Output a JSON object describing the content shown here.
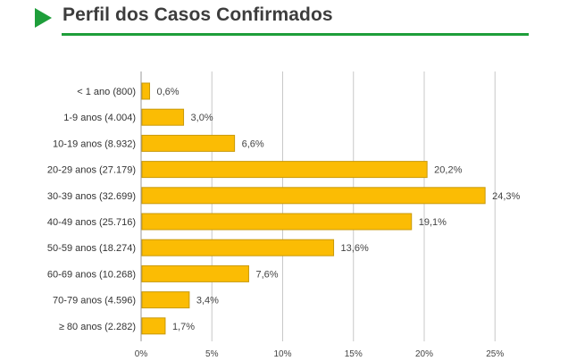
{
  "header": {
    "title": "Perfil dos Casos Confirmados",
    "accent_color": "#1e9e3a",
    "icon": "play-arrow-icon"
  },
  "chart_data": {
    "type": "bar",
    "orientation": "horizontal",
    "categories": [
      "< 1 ano (800)",
      "1-9 anos (4.004)",
      "10-19 anos (8.932)",
      "20-29 anos (27.179)",
      "30-39 anos (32.699)",
      "40-49 anos (25.716)",
      "50-59 anos (18.274)",
      "60-69 anos (10.268)",
      "70-79 anos (4.596)",
      "≥ 80 anos (2.282)"
    ],
    "values": [
      0.6,
      3.0,
      6.6,
      20.2,
      24.3,
      19.1,
      13.6,
      7.6,
      3.4,
      1.7
    ],
    "data_labels": [
      "0,6%",
      "3,0%",
      "6,6%",
      "20,2%",
      "24,3%",
      "19,1%",
      "13,6%",
      "7,6%",
      "3,4%",
      "1,7%"
    ],
    "x_ticks": [
      0,
      5,
      10,
      15,
      20,
      25
    ],
    "x_tick_labels": [
      "0%",
      "5%",
      "10%",
      "15%",
      "20%",
      "25%"
    ],
    "xlim": [
      0,
      25
    ],
    "grid": true,
    "bar_color": "#fbbc04",
    "bar_border_color": "#c99a0a",
    "title": "",
    "xlabel": "",
    "ylabel": ""
  }
}
